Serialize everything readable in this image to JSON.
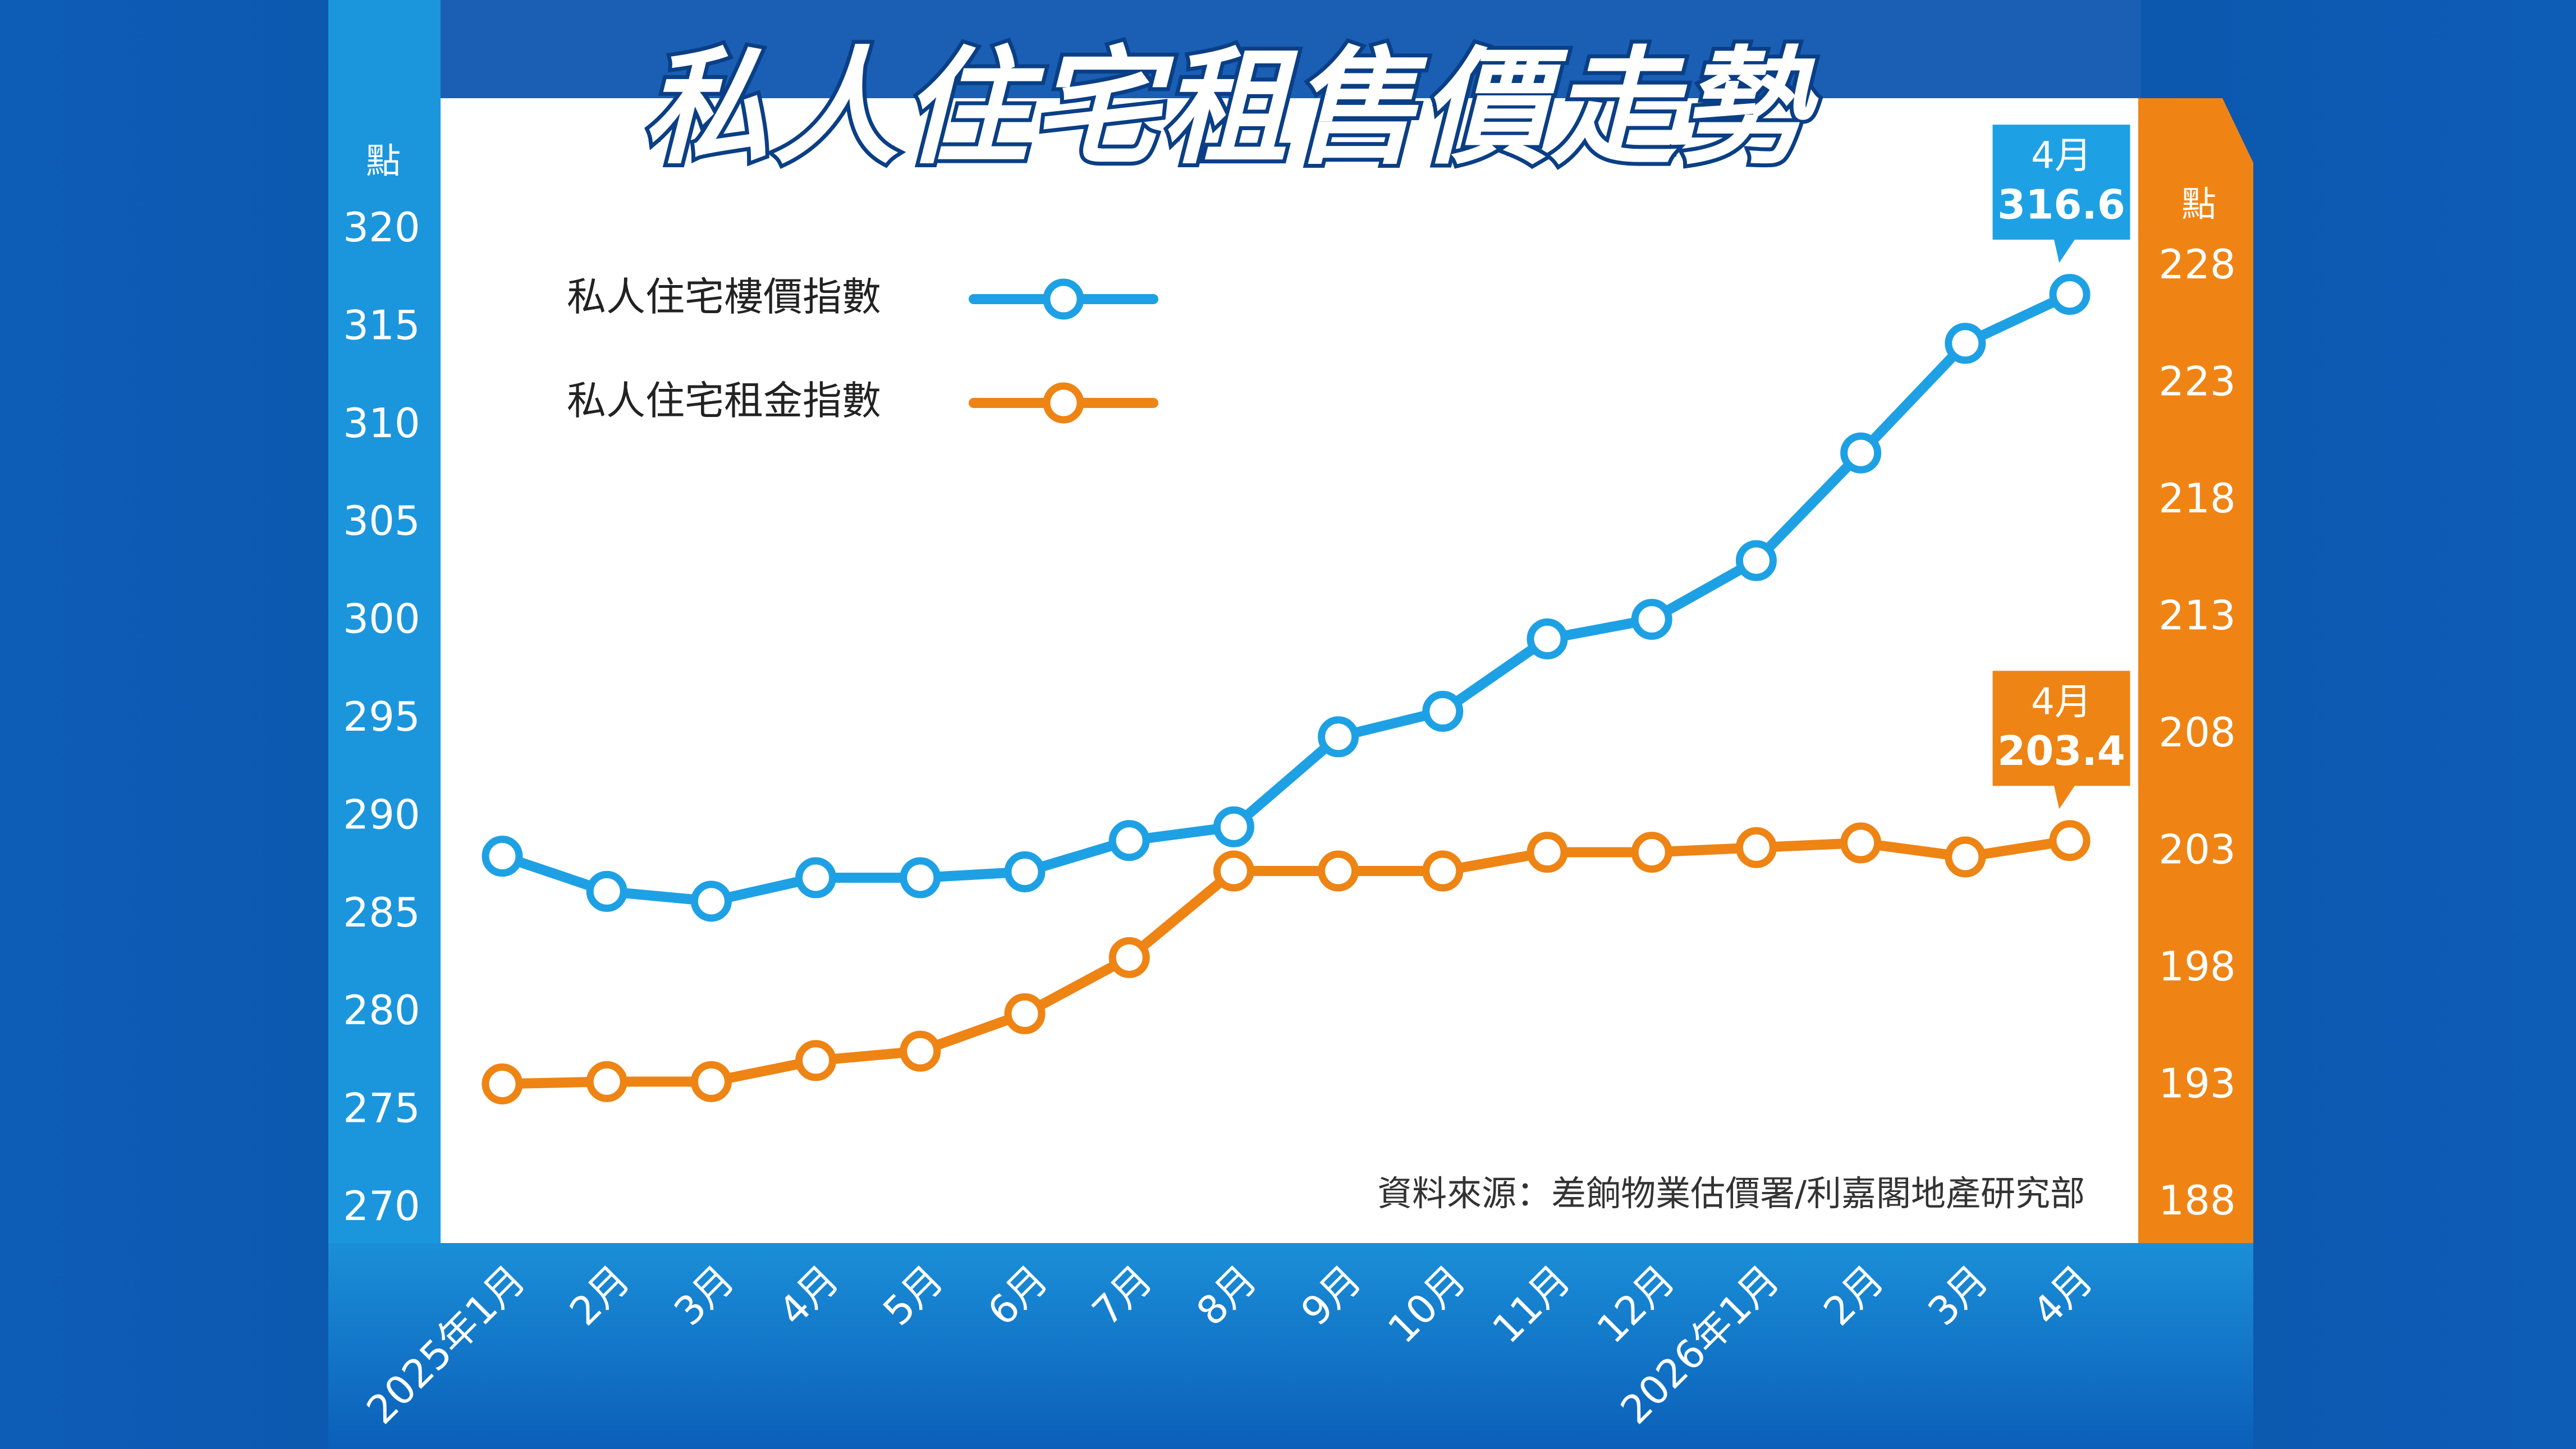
{
  "chart_data": {
    "type": "line",
    "title": "私人住宅租售價走勢",
    "categories": [
      "2025年1月",
      "2月",
      "3月",
      "4月",
      "5月",
      "6月",
      "7月",
      "8月",
      "9月",
      "10月",
      "11月",
      "12月",
      "2026年1月",
      "2月",
      "3月",
      "4月"
    ],
    "left_axis": {
      "label": "點",
      "ticks": [
        "320",
        "315",
        "310",
        "305",
        "300",
        "295",
        "290",
        "285",
        "280",
        "275",
        "270"
      ],
      "ylim": [
        270,
        320
      ]
    },
    "right_axis": {
      "label": "點",
      "ticks": [
        "228",
        "223",
        "218",
        "213",
        "208",
        "203",
        "198",
        "193",
        "188"
      ],
      "ylim": [
        188,
        228
      ]
    },
    "series": [
      {
        "name": "私人住宅樓價指數",
        "axis": "left",
        "color": "#1ea1e4",
        "values": [
          287.9,
          286.1,
          285.6,
          286.8,
          286.8,
          287.1,
          288.7,
          289.4,
          294.0,
          295.3,
          299.0,
          300.0,
          303.0,
          308.5,
          314.1,
          316.6
        ]
      },
      {
        "name": "私人住宅租金指數",
        "axis": "right",
        "color": "#ee8414",
        "values": [
          193.0,
          193.1,
          193.1,
          194.0,
          194.4,
          196.0,
          198.4,
          202.1,
          202.1,
          202.1,
          202.9,
          202.9,
          203.1,
          203.3,
          202.7,
          203.4
        ]
      }
    ],
    "legend_position": "top-left",
    "annotations": [
      {
        "series": 0,
        "label": "4月",
        "value": "316.6"
      },
      {
        "series": 1,
        "label": "4月",
        "value": "203.4"
      }
    ],
    "source": "資料來源：差餉物業估價署/利嘉閣地產研究部"
  },
  "colors": {
    "background": "#0a4f9e",
    "left_band": "#1b96dd",
    "right_band": "#ef8415",
    "plot_bg": "#ffffff"
  }
}
